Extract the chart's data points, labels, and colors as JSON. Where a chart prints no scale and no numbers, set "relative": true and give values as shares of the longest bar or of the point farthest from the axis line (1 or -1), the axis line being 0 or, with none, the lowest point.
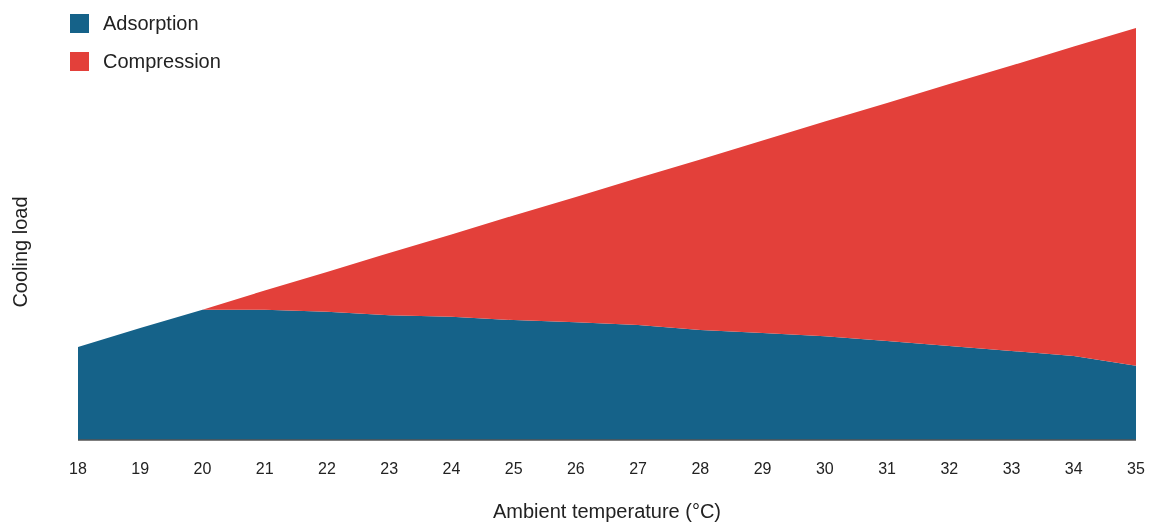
{
  "chart_data": {
    "type": "area",
    "stacked": true,
    "relative": true,
    "xlabel": "Ambient temperature (°C)",
    "ylabel": "Cooling load",
    "x": [
      18,
      19,
      20,
      21,
      22,
      23,
      24,
      25,
      26,
      27,
      28,
      29,
      30,
      31,
      32,
      33,
      34,
      35
    ],
    "xlim": [
      18,
      35
    ],
    "xticks": [
      18,
      19,
      20,
      21,
      22,
      23,
      24,
      25,
      26,
      27,
      28,
      29,
      30,
      31,
      32,
      33,
      34,
      35
    ],
    "legend": "top left",
    "grid": false,
    "series": [
      {
        "name": "Adsorption",
        "color": "#156289",
        "values": [
          0.226,
          0.272,
          0.316,
          0.316,
          0.311,
          0.303,
          0.299,
          0.291,
          0.286,
          0.279,
          0.267,
          0.26,
          0.252,
          0.24,
          0.228,
          0.216,
          0.204,
          0.18
        ]
      },
      {
        "name": "Compression",
        "color": "#e3403a",
        "values": [
          0,
          0,
          0,
          0.047,
          0.097,
          0.151,
          0.2,
          0.254,
          0.304,
          0.357,
          0.414,
          0.467,
          0.521,
          0.578,
          0.636,
          0.693,
          0.751,
          0.82
        ]
      }
    ]
  }
}
